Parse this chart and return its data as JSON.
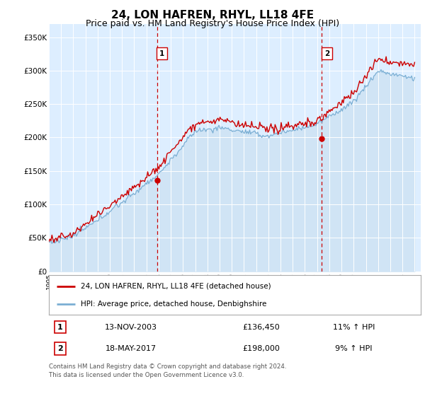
{
  "title": "24, LON HAFREN, RHYL, LL18 4FE",
  "subtitle": "Price paid vs. HM Land Registry's House Price Index (HPI)",
  "title_fontsize": 11,
  "subtitle_fontsize": 9,
  "ylim": [
    0,
    370000
  ],
  "yticks": [
    0,
    50000,
    100000,
    150000,
    200000,
    250000,
    300000,
    350000
  ],
  "ytick_labels": [
    "£0",
    "£50K",
    "£100K",
    "£150K",
    "£200K",
    "£250K",
    "£300K",
    "£350K"
  ],
  "hpi_color": "#7bafd4",
  "hpi_fill_color": "#d0e4f5",
  "price_color": "#cc0000",
  "marker1_year": 2003.87,
  "marker1_price": 136450,
  "marker2_year": 2017.38,
  "marker2_price": 198000,
  "vline_color": "#cc0000",
  "legend_label_price": "24, LON HAFREN, RHYL, LL18 4FE (detached house)",
  "legend_label_hpi": "HPI: Average price, detached house, Denbighshire",
  "table_row1_num": "1",
  "table_row1_date": "13-NOV-2003",
  "table_row1_price": "£136,450",
  "table_row1_hpi": "11% ↑ HPI",
  "table_row2_num": "2",
  "table_row2_date": "18-MAY-2017",
  "table_row2_price": "£198,000",
  "table_row2_hpi": "9% ↑ HPI",
  "footer": "Contains HM Land Registry data © Crown copyright and database right 2024.\nThis data is licensed under the Open Government Licence v3.0.",
  "bg_color": "#ffffff",
  "plot_bg_color": "#ddeeff"
}
